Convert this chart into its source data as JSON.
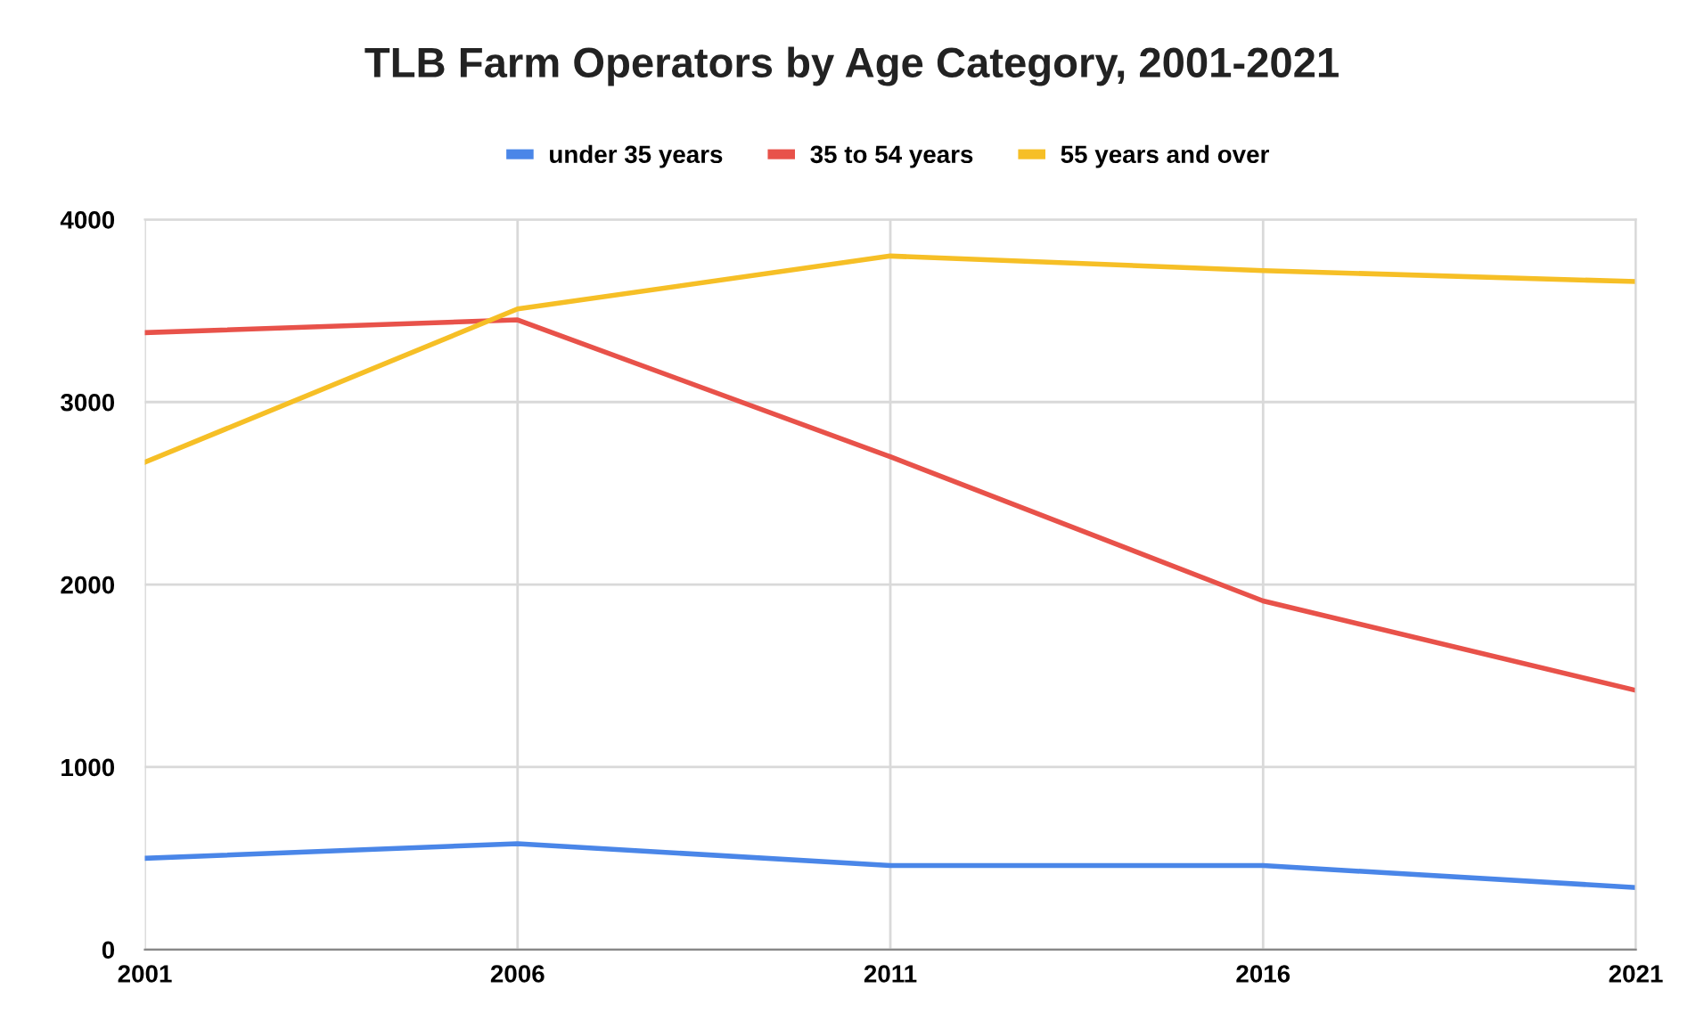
{
  "chart_data": {
    "type": "line",
    "title": "TLB Farm Operators by Age Category, 2001-2021",
    "categories": [
      "2001",
      "2006",
      "2011",
      "2016",
      "2021"
    ],
    "series": [
      {
        "name": "under 35 years",
        "color": "#4a86e8",
        "values": [
          500,
          580,
          460,
          460,
          340
        ]
      },
      {
        "name": "35 to 54 years",
        "color": "#e8524a",
        "values": [
          3380,
          3450,
          2700,
          1910,
          1420
        ]
      },
      {
        "name": "55 years and over",
        "color": "#f6bf26",
        "values": [
          2670,
          3510,
          3800,
          3720,
          3660
        ]
      }
    ],
    "ylim": [
      0,
      4000
    ],
    "yticks": [
      0,
      1000,
      2000,
      3000,
      4000
    ],
    "grid": true,
    "legend": "top",
    "marker": "none",
    "line_style": "solid"
  }
}
